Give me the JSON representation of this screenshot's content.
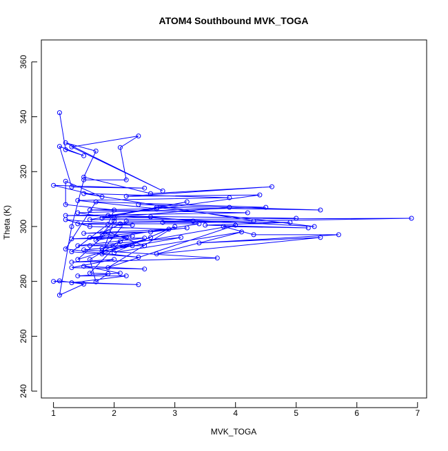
{
  "chart_data": {
    "type": "scatter",
    "title": "ATOM4 Southbound MVK_TOGA",
    "xlabel": "MVK_TOGA",
    "ylabel": "Theta (K)",
    "xlim": [
      0.8,
      7.15
    ],
    "ylim": [
      237.5,
      368.0
    ],
    "xticks": [
      1,
      2,
      3,
      4,
      5,
      6,
      7
    ],
    "xtick_labels": [
      "1",
      "2",
      "3",
      "4",
      "5",
      "6",
      "7"
    ],
    "yticks": [
      240,
      260,
      280,
      300,
      320,
      340,
      360
    ],
    "ytick_labels": [
      "240",
      "260",
      "280",
      "300",
      "320",
      "340",
      "360"
    ],
    "grid": false,
    "legend": "none",
    "colors": {
      "series": "#0000ff",
      "axes": "#000000",
      "background": "#ffffff"
    },
    "style": "points connected by lines (points drawn as open circles)",
    "series": [
      {
        "points": [
          [
            1.1,
            341.5
          ],
          [
            1.2,
            328.0
          ],
          [
            1.5,
            325.8
          ],
          [
            1.1,
            329.2
          ],
          [
            1.3,
            314.4
          ],
          [
            2.5,
            314.0
          ],
          [
            1.0,
            315.0
          ],
          [
            1.8,
            310.8
          ],
          [
            1.2,
            316.5
          ],
          [
            1.2,
            308.0
          ],
          [
            2.0,
            306.0
          ],
          [
            1.9,
            300.8
          ],
          [
            1.3,
            290.8
          ],
          [
            2.4,
            288.8
          ],
          [
            1.2,
            291.8
          ],
          [
            1.7,
            309.0
          ],
          [
            4.5,
            307.0
          ],
          [
            1.4,
            305.0
          ],
          [
            2.0,
            303.0
          ],
          [
            2.6,
            303.5
          ],
          [
            3.3,
            302.0
          ],
          [
            1.4,
            301.0
          ],
          [
            2.3,
            300.5
          ],
          [
            1.2,
            302.5
          ],
          [
            1.6,
            300.0
          ],
          [
            2.9,
            299.0
          ],
          [
            1.5,
            297.5
          ],
          [
            2.6,
            298.0
          ],
          [
            3.2,
            299.5
          ],
          [
            1.6,
            296.0
          ],
          [
            2.3,
            296.5
          ],
          [
            1.3,
            295.5
          ],
          [
            2.5,
            295.8
          ],
          [
            1.4,
            293.0
          ],
          [
            2.3,
            293.0
          ],
          [
            1.5,
            291.5
          ],
          [
            3.7,
            288.5
          ],
          [
            1.3,
            287.0
          ],
          [
            2.0,
            288.0
          ],
          [
            1.3,
            285.0
          ],
          [
            2.5,
            284.5
          ],
          [
            1.5,
            285.5
          ],
          [
            2.1,
            283.0
          ],
          [
            1.4,
            282.0
          ],
          [
            2.2,
            282.0
          ],
          [
            1.3,
            279.5
          ],
          [
            2.4,
            278.8
          ],
          [
            1.0,
            280.0
          ],
          [
            1.1,
            280.2
          ],
          [
            1.5,
            279.0
          ],
          [
            1.1,
            275.0
          ],
          [
            1.3,
            300.0
          ],
          [
            1.5,
            317.0
          ],
          [
            2.2,
            317.0
          ],
          [
            2.1,
            328.8
          ],
          [
            2.4,
            333.0
          ],
          [
            1.3,
            329.0
          ],
          [
            2.8,
            313.0
          ],
          [
            1.2,
            330.5
          ],
          [
            1.7,
            327.5
          ],
          [
            1.5,
            318.0
          ],
          [
            2.6,
            312.0
          ],
          [
            4.6,
            314.5
          ],
          [
            2.2,
            311.0
          ],
          [
            4.4,
            311.5
          ],
          [
            1.9,
            304.0
          ],
          [
            5.3,
            300.0
          ],
          [
            2.7,
            307.0
          ],
          [
            5.4,
            306.0
          ],
          [
            2.4,
            308.0
          ],
          [
            3.9,
            307.0
          ],
          [
            1.8,
            303.0
          ],
          [
            3.2,
            309.0
          ],
          [
            1.6,
            302.5
          ],
          [
            6.9,
            303.0
          ],
          [
            2.8,
            301.5
          ],
          [
            4.9,
            301.5
          ],
          [
            3.5,
            300.5
          ],
          [
            5.2,
            299.5
          ],
          [
            3.8,
            300.0
          ],
          [
            4.3,
            297.0
          ],
          [
            5.7,
            297.0
          ],
          [
            3.4,
            294.0
          ],
          [
            5.4,
            296.0
          ],
          [
            2.7,
            290.0
          ],
          [
            4.1,
            298.0
          ],
          [
            2.0,
            290.5
          ],
          [
            3.0,
            300.0
          ],
          [
            1.9,
            285.0
          ],
          [
            4.0,
            300.5
          ],
          [
            1.8,
            292.0
          ],
          [
            2.1,
            294.5
          ],
          [
            1.6,
            283.0
          ],
          [
            1.9,
            282.8
          ],
          [
            1.7,
            279.8
          ],
          [
            1.6,
            288.0
          ],
          [
            2.2,
            296.0
          ],
          [
            1.8,
            297.5
          ],
          [
            2.1,
            301.0
          ],
          [
            3.4,
            301.0
          ],
          [
            1.7,
            295.0
          ],
          [
            2.0,
            302.0
          ],
          [
            1.8,
            290.0
          ],
          [
            2.6,
            296.0
          ],
          [
            1.4,
            288.0
          ],
          [
            1.9,
            298.0
          ],
          [
            2.5,
            293.0
          ],
          [
            1.6,
            293.0
          ],
          [
            3.1,
            296.0
          ],
          [
            1.8,
            291.0
          ],
          [
            2.2,
            302.0
          ],
          [
            4.3,
            302.0
          ],
          [
            1.5,
            312.0
          ],
          [
            3.9,
            310.5
          ],
          [
            1.4,
            309.5
          ],
          [
            2.7,
            306.5
          ],
          [
            1.6,
            306.0
          ],
          [
            4.2,
            305.0
          ],
          [
            1.2,
            304.0
          ],
          [
            5.0,
            303.0
          ]
        ]
      }
    ]
  }
}
